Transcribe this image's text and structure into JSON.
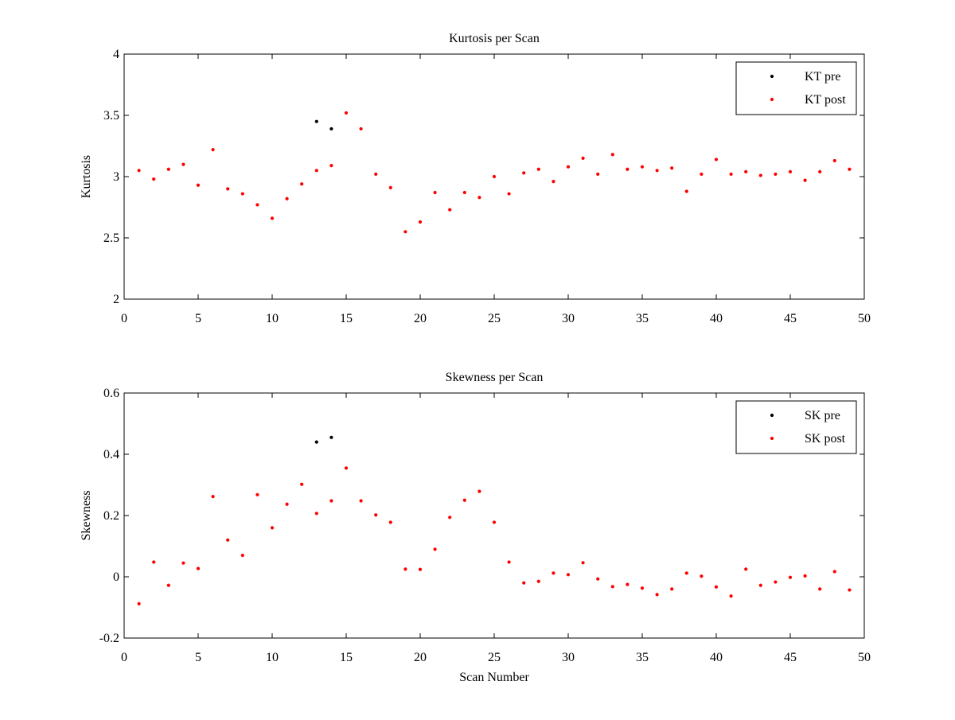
{
  "chart_data": [
    {
      "type": "scatter",
      "title": "Kurtosis per Scan",
      "xlabel": "",
      "ylabel": "Kurtosis",
      "xlim": [
        0,
        50
      ],
      "ylim": [
        2,
        4
      ],
      "xticks": [
        0,
        5,
        10,
        15,
        20,
        25,
        30,
        35,
        40,
        45,
        50
      ],
      "yticks": [
        2,
        2.5,
        3,
        3.5,
        4
      ],
      "grid": false,
      "legend_position": "top-right",
      "series": [
        {
          "name": "KT pre",
          "color": "#000000",
          "points": [
            [
              13,
              3.45
            ],
            [
              14,
              3.39
            ]
          ]
        },
        {
          "name": "KT post",
          "color": "#ff0000",
          "points": [
            [
              1,
              3.05
            ],
            [
              2,
              2.98
            ],
            [
              3,
              3.06
            ],
            [
              4,
              3.1
            ],
            [
              5,
              2.93
            ],
            [
              6,
              3.22
            ],
            [
              7,
              2.9
            ],
            [
              8,
              2.86
            ],
            [
              9,
              2.77
            ],
            [
              10,
              2.66
            ],
            [
              11,
              2.82
            ],
            [
              12,
              2.94
            ],
            [
              13,
              3.05
            ],
            [
              14,
              3.09
            ],
            [
              15,
              3.52
            ],
            [
              16,
              3.39
            ],
            [
              17,
              3.02
            ],
            [
              18,
              2.91
            ],
            [
              19,
              2.55
            ],
            [
              20,
              2.63
            ],
            [
              21,
              2.87
            ],
            [
              22,
              2.73
            ],
            [
              23,
              2.87
            ],
            [
              24,
              2.83
            ],
            [
              25,
              3.0
            ],
            [
              26,
              2.86
            ],
            [
              27,
              3.03
            ],
            [
              28,
              3.06
            ],
            [
              29,
              2.96
            ],
            [
              30,
              3.08
            ],
            [
              31,
              3.15
            ],
            [
              32,
              3.02
            ],
            [
              33,
              3.18
            ],
            [
              34,
              3.06
            ],
            [
              35,
              3.08
            ],
            [
              36,
              3.05
            ],
            [
              37,
              3.07
            ],
            [
              38,
              2.88
            ],
            [
              39,
              3.02
            ],
            [
              40,
              3.14
            ],
            [
              41,
              3.02
            ],
            [
              42,
              3.04
            ],
            [
              43,
              3.01
            ],
            [
              44,
              3.02
            ],
            [
              45,
              3.04
            ],
            [
              46,
              2.97
            ],
            [
              47,
              3.04
            ],
            [
              48,
              3.13
            ],
            [
              49,
              3.06
            ]
          ]
        }
      ]
    },
    {
      "type": "scatter",
      "title": "Skewness per Scan",
      "xlabel": "Scan Number",
      "ylabel": "Skewness",
      "xlim": [
        0,
        50
      ],
      "ylim": [
        -0.2,
        0.6
      ],
      "xticks": [
        0,
        5,
        10,
        15,
        20,
        25,
        30,
        35,
        40,
        45,
        50
      ],
      "yticks": [
        -0.2,
        0,
        0.2,
        0.4,
        0.6
      ],
      "grid": false,
      "legend_position": "top-right",
      "series": [
        {
          "name": "SK pre",
          "color": "#000000",
          "points": [
            [
              13,
              0.44
            ],
            [
              14,
              0.455
            ]
          ]
        },
        {
          "name": "SK post",
          "color": "#ff0000",
          "points": [
            [
              1,
              -0.088
            ],
            [
              2,
              0.048
            ],
            [
              3,
              -0.028
            ],
            [
              4,
              0.045
            ],
            [
              5,
              0.027
            ],
            [
              6,
              0.262
            ],
            [
              7,
              0.12
            ],
            [
              8,
              0.07
            ],
            [
              9,
              0.268
            ],
            [
              10,
              0.16
            ],
            [
              11,
              0.237
            ],
            [
              12,
              0.302
            ],
            [
              13,
              0.207
            ],
            [
              14,
              0.248
            ],
            [
              15,
              0.355
            ],
            [
              16,
              0.248
            ],
            [
              17,
              0.202
            ],
            [
              18,
              0.178
            ],
            [
              19,
              0.025
            ],
            [
              20,
              0.024
            ],
            [
              21,
              0.09
            ],
            [
              22,
              0.194
            ],
            [
              23,
              0.25
            ],
            [
              24,
              0.279
            ],
            [
              25,
              0.178
            ],
            [
              26,
              0.048
            ],
            [
              27,
              -0.02
            ],
            [
              28,
              -0.015
            ],
            [
              29,
              0.012
            ],
            [
              30,
              0.007
            ],
            [
              31,
              0.046
            ],
            [
              32,
              -0.007
            ],
            [
              33,
              -0.032
            ],
            [
              34,
              -0.025
            ],
            [
              35,
              -0.037
            ],
            [
              36,
              -0.058
            ],
            [
              37,
              -0.04
            ],
            [
              38,
              0.012
            ],
            [
              39,
              0.002
            ],
            [
              40,
              -0.033
            ],
            [
              41,
              -0.063
            ],
            [
              42,
              0.025
            ],
            [
              43,
              -0.028
            ],
            [
              44,
              -0.017
            ],
            [
              45,
              -0.002
            ],
            [
              46,
              0.003
            ],
            [
              47,
              -0.04
            ],
            [
              48,
              0.017
            ],
            [
              49,
              -0.043
            ]
          ]
        }
      ]
    }
  ]
}
